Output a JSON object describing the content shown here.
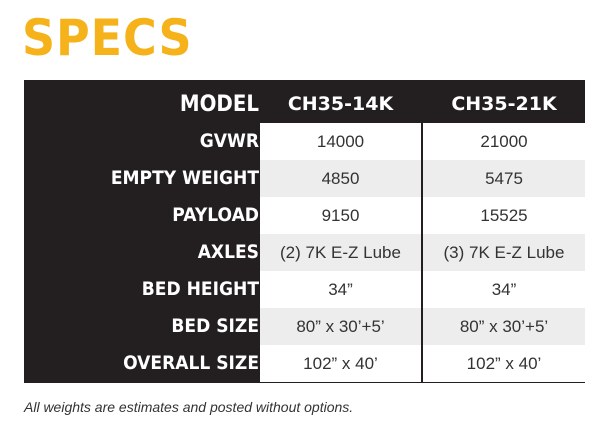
{
  "title": "SPECS",
  "table": {
    "header": {
      "label": "MODEL",
      "models": [
        "CH35-14K",
        "CH35-21K"
      ]
    },
    "rows": [
      {
        "label": "GVWR",
        "values": [
          "14000",
          "21000"
        ]
      },
      {
        "label": "EMPTY WEIGHT",
        "values": [
          "4850",
          "5475"
        ]
      },
      {
        "label": "PAYLOAD",
        "values": [
          "9150",
          "15525"
        ]
      },
      {
        "label": "AXLES",
        "values": [
          "(2) 7K E-Z Lube",
          "(3) 7K E-Z Lube"
        ]
      },
      {
        "label": "BED HEIGHT",
        "values": [
          "34”",
          "34”"
        ]
      },
      {
        "label": "BED SIZE",
        "values": [
          "80” x 30’+5’",
          "80” x 30’+5’"
        ]
      },
      {
        "label": "OVERALL SIZE",
        "values": [
          "102” x 40’",
          "102” x 40’"
        ]
      }
    ]
  },
  "footnote": "All weights are estimates and posted without options.",
  "colors": {
    "accent": "#F5B21B",
    "table_dark": "#231F20",
    "row_alt": "#EDEDED"
  }
}
